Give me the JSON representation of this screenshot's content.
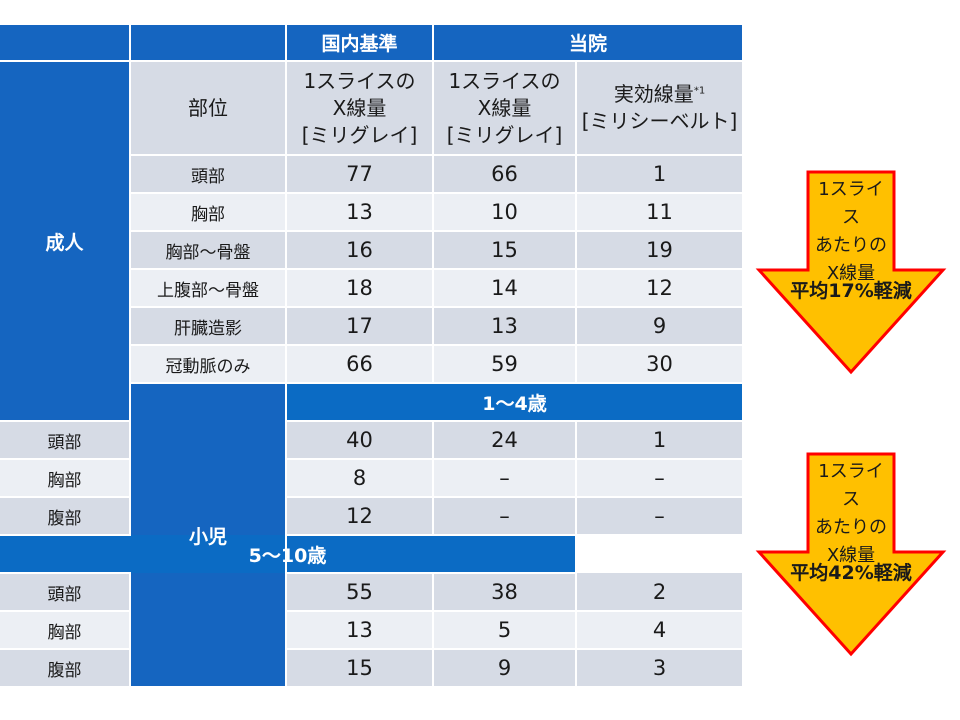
{
  "table": {
    "top_headers": {
      "blank1": "",
      "blank2": "",
      "national": "国内基準",
      "hospital": "当院"
    },
    "col_headers": {
      "part": "部位",
      "national": [
        "1スライスの",
        "X線量",
        "[ミリグレイ]"
      ],
      "hospital": [
        "1スライスの",
        "X線量",
        "[ミリグレイ]"
      ],
      "effective": [
        "実効線量",
        "[ミリシーベルト]"
      ],
      "effective_note": "*1"
    },
    "adult": {
      "label": "成人",
      "rows": [
        {
          "part": "頭部",
          "national": "77",
          "hospital": "66",
          "effective": "1"
        },
        {
          "part": "胸部",
          "national": "13",
          "hospital": "10",
          "effective": "11"
        },
        {
          "part": "胸部～骨盤",
          "national": "16",
          "hospital": "15",
          "effective": "19"
        },
        {
          "part": "上腹部～骨盤",
          "national": "18",
          "hospital": "14",
          "effective": "12"
        },
        {
          "part": "肝臓造影",
          "national": "17",
          "hospital": "13",
          "effective": "9"
        },
        {
          "part": "冠動脈のみ",
          "national": "66",
          "hospital": "59",
          "effective": "30"
        }
      ]
    },
    "child": {
      "label": "小児",
      "groups": [
        {
          "age": "1～4歳",
          "rows": [
            {
              "part": "頭部",
              "national": "40",
              "hospital": "24",
              "effective": "1"
            },
            {
              "part": "胸部",
              "national": "8",
              "hospital": "–",
              "effective": "–"
            },
            {
              "part": "腹部",
              "national": "12",
              "hospital": "–",
              "effective": "–"
            }
          ]
        },
        {
          "age": "5～10歳",
          "rows": [
            {
              "part": "頭部",
              "national": "55",
              "hospital": "38",
              "effective": "2"
            },
            {
              "part": "胸部",
              "national": "13",
              "hospital": "5",
              "effective": "4"
            },
            {
              "part": "腹部",
              "national": "15",
              "hospital": "9",
              "effective": "3"
            }
          ]
        }
      ]
    }
  },
  "callouts": [
    {
      "lines": [
        "1スライス",
        "あたりの",
        "X線量"
      ],
      "reduction": "平均17%軽減"
    },
    {
      "lines": [
        "1スライス",
        "あたりの",
        "X線量"
      ],
      "reduction": "平均42%軽減"
    }
  ],
  "colors": {
    "header_blue": "#1565c0",
    "row_dark": "#d6dbe5",
    "row_light": "#eceff4",
    "arrow_fill": "#ffc000",
    "arrow_stroke": "#ff0000"
  }
}
